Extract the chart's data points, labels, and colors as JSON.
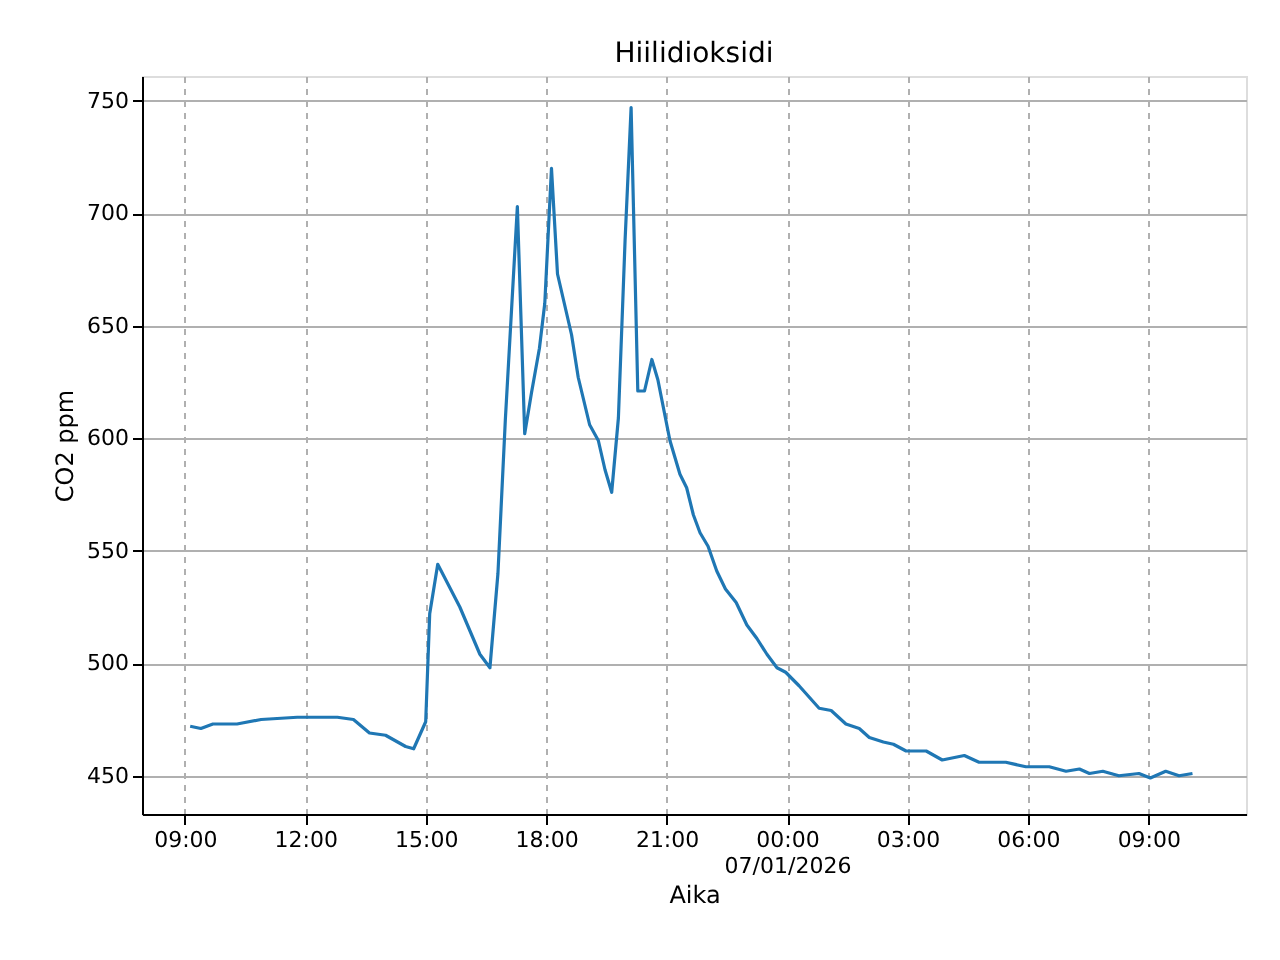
{
  "chart_data": {
    "type": "line",
    "title": "Hiilidioksidi",
    "xlabel": "Aika",
    "ylabel": "CO2 ppm",
    "x": [
      "2026-01-06T09:08",
      "2026-01-06T09:24",
      "2026-01-06T09:42",
      "2026-01-06T10:18",
      "2026-01-06T10:54",
      "2026-01-06T11:48",
      "2026-01-06T12:48",
      "2026-01-06T13:12",
      "2026-01-06T13:36",
      "2026-01-06T14:00",
      "2026-01-06T14:30",
      "2026-01-06T14:42",
      "2026-01-06T15:00",
      "2026-01-06T15:06",
      "2026-01-06T15:18",
      "2026-01-06T15:51",
      "2026-01-06T16:21",
      "2026-01-06T16:36",
      "2026-01-06T16:48",
      "2026-01-06T16:59",
      "2026-01-06T17:17",
      "2026-01-06T17:28",
      "2026-01-06T17:38",
      "2026-01-06T17:50",
      "2026-01-06T17:58",
      "2026-01-06T18:08",
      "2026-01-06T18:17",
      "2026-01-06T18:38",
      "2026-01-06T18:48",
      "2026-01-06T19:05",
      "2026-01-06T19:18",
      "2026-01-06T19:28",
      "2026-01-06T19:38",
      "2026-01-06T19:48",
      "2026-01-06T19:58",
      "2026-01-06T20:07",
      "2026-01-06T20:17",
      "2026-01-06T20:27",
      "2026-01-06T20:38",
      "2026-01-06T20:47",
      "2026-01-06T21:05",
      "2026-01-06T21:20",
      "2026-01-06T21:30",
      "2026-01-06T21:40",
      "2026-01-06T21:50",
      "2026-01-06T22:02",
      "2026-01-06T22:15",
      "2026-01-06T22:28",
      "2026-01-06T22:44",
      "2026-01-06T23:00",
      "2026-01-06T23:15",
      "2026-01-06T23:30",
      "2026-01-06T23:45",
      "2026-01-06T23:58",
      "2026-01-07T00:18",
      "2026-01-07T00:48",
      "2026-01-07T01:06",
      "2026-01-07T01:28",
      "2026-01-07T01:48",
      "2026-01-07T02:03",
      "2026-01-07T02:24",
      "2026-01-07T02:39",
      "2026-01-07T02:58",
      "2026-01-07T03:28",
      "2026-01-07T03:52",
      "2026-01-07T04:25",
      "2026-01-07T04:47",
      "2026-01-07T05:27",
      "2026-01-07T05:57",
      "2026-01-07T06:32",
      "2026-01-07T06:57",
      "2026-01-07T07:17",
      "2026-01-07T07:32",
      "2026-01-07T07:52",
      "2026-01-07T08:16",
      "2026-01-07T08:46",
      "2026-01-07T09:03",
      "2026-01-07T09:26",
      "2026-01-07T09:46",
      "2026-01-07T10:06"
    ],
    "series": [
      {
        "color": "#1f77b4",
        "values": [
          472,
          471,
          473,
          473,
          475,
          476,
          476,
          475,
          469,
          468,
          463,
          462,
          474,
          522,
          544,
          525,
          504,
          498,
          540,
          608,
          703,
          602,
          620,
          640,
          660,
          720,
          673,
          646,
          627,
          606,
          599,
          586,
          576,
          609,
          688,
          747,
          621,
          621,
          635,
          626,
          599,
          584,
          578,
          566,
          558,
          552,
          541,
          533,
          527,
          517,
          511,
          504,
          498,
          496,
          490,
          480,
          479,
          473,
          471,
          467,
          465,
          464,
          461,
          461,
          457,
          459,
          456,
          456,
          454,
          454,
          452,
          453,
          451,
          452,
          450,
          451,
          449,
          452,
          450,
          451
        ]
      }
    ],
    "xlim": [
      "2026-01-06T07:56",
      "2026-01-07T11:26"
    ],
    "xticks": [
      {
        "value": "2026-01-06T09:00",
        "label": "09:00"
      },
      {
        "value": "2026-01-06T12:00",
        "label": "12:00"
      },
      {
        "value": "2026-01-06T15:00",
        "label": "15:00"
      },
      {
        "value": "2026-01-06T18:00",
        "label": "18:00"
      },
      {
        "value": "2026-01-06T21:00",
        "label": "21:00"
      },
      {
        "value": "2026-01-07T00:00",
        "label": "00:00\n07/01/2026"
      },
      {
        "value": "2026-01-07T03:00",
        "label": "03:00"
      },
      {
        "value": "2026-01-07T06:00",
        "label": "06:00"
      },
      {
        "value": "2026-01-07T09:00",
        "label": "09:00"
      }
    ],
    "ylim": [
      433,
      761
    ],
    "yticks": [
      450,
      500,
      550,
      600,
      650,
      700,
      750
    ],
    "grid": true,
    "line_style": "solid",
    "marker": "none"
  }
}
